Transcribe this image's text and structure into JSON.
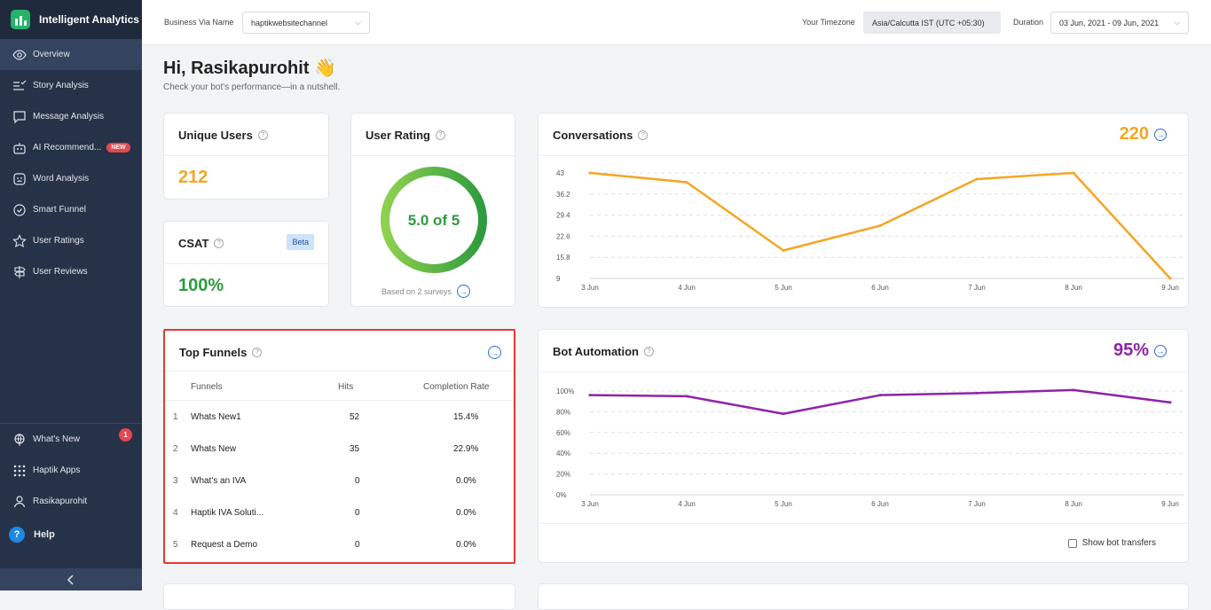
{
  "app": {
    "name": "Intelligent Analytics"
  },
  "sidebar": {
    "items": [
      {
        "label": "Overview"
      },
      {
        "label": "Story Analysis"
      },
      {
        "label": "Message Analysis"
      },
      {
        "label": "AI Recommend...",
        "badge": "NEW"
      },
      {
        "label": "Word Analysis"
      },
      {
        "label": "Smart Funnel"
      },
      {
        "label": "User Ratings"
      },
      {
        "label": "User Reviews"
      }
    ],
    "bottom": [
      {
        "label": "What's New",
        "count": "1"
      },
      {
        "label": "Haptik Apps"
      },
      {
        "label": "Rasikapurohit"
      }
    ],
    "help": "Help"
  },
  "topbar": {
    "business_label": "Business Via Name",
    "business_value": "haptikwebsitechannel",
    "timezone_label": "Your Timezone",
    "timezone_value": "Asia/Calcutta IST (UTC +05:30)",
    "duration_label": "Duration",
    "duration_value": "03 Jun, 2021 - 09 Jun, 2021"
  },
  "greeting": {
    "title": "Hi, Rasikapurohit",
    "emoji": "👋",
    "subtitle": "Check your bot's performance—in a nutshell."
  },
  "unique_users": {
    "title": "Unique Users",
    "value": "212"
  },
  "csat": {
    "title": "CSAT",
    "badge": "Beta",
    "value": "100%"
  },
  "user_rating": {
    "title": "User Rating",
    "value": "5.0 of 5",
    "fraction": 1.0,
    "footer": "Based on 2 surveys"
  },
  "conversations": {
    "title": "Conversations",
    "total": "220"
  },
  "bot_automation": {
    "title": "Bot Automation",
    "total": "95%",
    "checkbox_label": "Show bot transfers"
  },
  "top_funnels": {
    "title": "Top Funnels",
    "columns": [
      "Funnels",
      "Hits",
      "Completion Rate"
    ],
    "rows": [
      {
        "n": "1",
        "name": "Whats New1",
        "hits": "52",
        "rate": "15.4%"
      },
      {
        "n": "2",
        "name": "Whats New",
        "hits": "35",
        "rate": "22.9%"
      },
      {
        "n": "3",
        "name": "What's an IVA",
        "hits": "0",
        "rate": "0.0%"
      },
      {
        "n": "4",
        "name": "Haptik IVA Soluti...",
        "hits": "0",
        "rate": "0.0%"
      },
      {
        "n": "5",
        "name": "Request a Demo",
        "hits": "0",
        "rate": "0.0%"
      }
    ]
  },
  "colors": {
    "orange": "#f5a623",
    "green": "#2e9b3f",
    "purple": "#8e24aa",
    "highlight_border": "#e53935"
  },
  "chart_data": [
    {
      "type": "line",
      "title": "Conversations",
      "x": [
        "3 Jun",
        "4 Jun",
        "5 Jun",
        "6 Jun",
        "7 Jun",
        "8 Jun",
        "9 Jun"
      ],
      "ytick_labels": [
        "43",
        "36.2",
        "29.4",
        "22.6",
        "15.8",
        "9"
      ],
      "ylim": [
        9,
        43
      ],
      "series": [
        {
          "values": [
            43,
            40,
            18,
            26,
            41,
            43,
            9
          ]
        }
      ],
      "grid": true
    },
    {
      "type": "line",
      "title": "Bot Automation",
      "x": [
        "3 Jun",
        "4 Jun",
        "5 Jun",
        "6 Jun",
        "7 Jun",
        "8 Jun",
        "9 Jun"
      ],
      "ytick_labels": [
        "100%",
        "80%",
        "60%",
        "40%",
        "20%",
        "0%"
      ],
      "ylim": [
        0,
        100
      ],
      "series": [
        {
          "values": [
            96,
            95,
            78,
            96,
            98,
            101,
            89
          ]
        }
      ],
      "grid": true
    }
  ]
}
